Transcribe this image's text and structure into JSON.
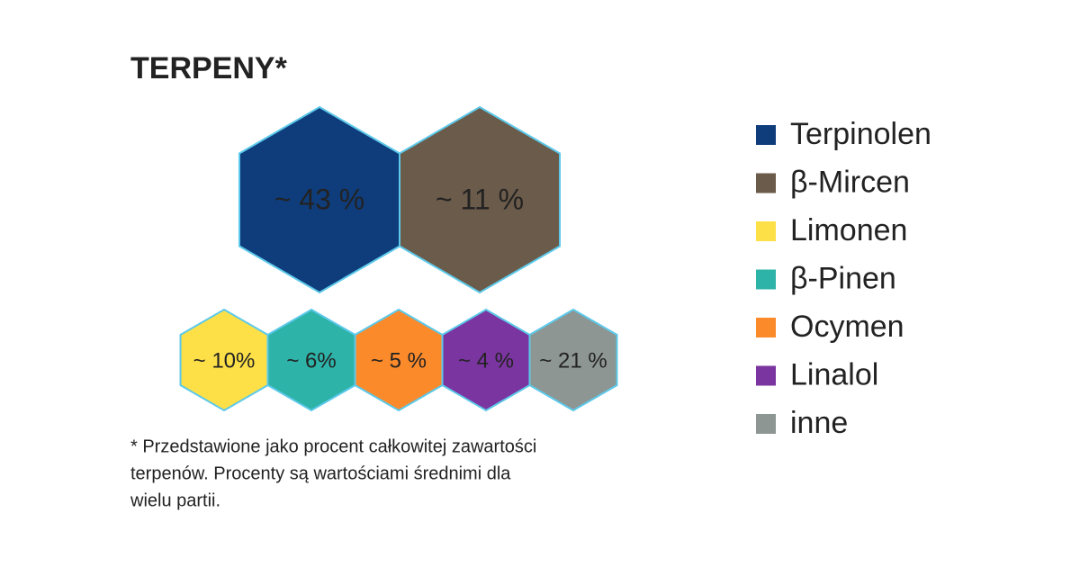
{
  "chart_data": {
    "type": "hexagon",
    "title": "TERPENY*",
    "series": [
      {
        "name": "Terpinolen",
        "color": "#0f3d7c",
        "values": [
          43
        ],
        "value_labels": [
          "~ 43 %"
        ]
      },
      {
        "name": "β-Mircen",
        "color": "#6b5b4b",
        "values": [
          11
        ],
        "value_labels": [
          "~ 11 %"
        ]
      },
      {
        "name": "Limonen",
        "color": "#fde047",
        "values": [
          10
        ],
        "value_labels": [
          "~ 10%"
        ]
      },
      {
        "name": "β-Pinen",
        "color": "#2db3a8",
        "values": [
          6
        ],
        "value_labels": [
          "~ 6%"
        ]
      },
      {
        "name": "Ocymen",
        "color": "#fb8a2b",
        "values": [
          5
        ],
        "value_labels": [
          "~ 5 %"
        ]
      },
      {
        "name": "Linalol",
        "color": "#7b35a0",
        "values": [
          4
        ],
        "value_labels": [
          "~ 4 %"
        ]
      },
      {
        "name": "inne",
        "color": "#8d9692",
        "values": [
          21
        ],
        "value_labels": [
          "~ 21 %"
        ]
      }
    ],
    "footnote": [
      "* Przedstawione jako procent całkowitej zawartości",
      "terpenów. Procenty są wartościami średnimi dla",
      "wielu partii."
    ]
  }
}
